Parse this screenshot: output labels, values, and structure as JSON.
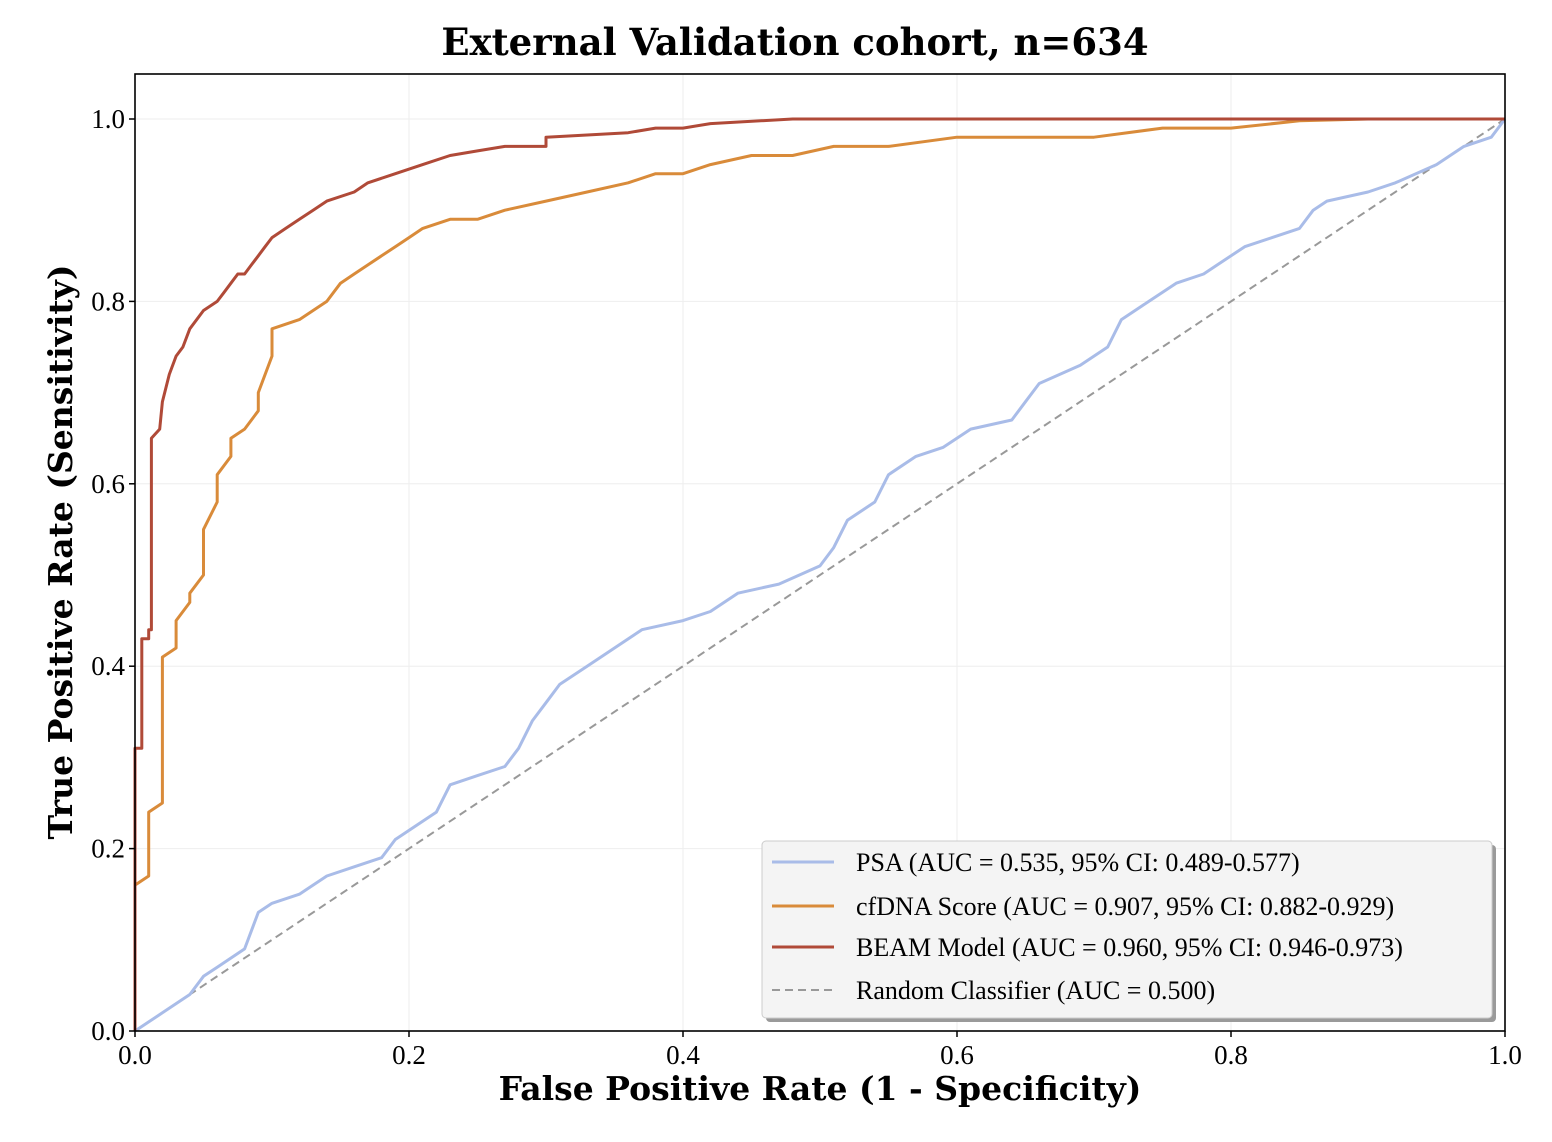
{
  "chart_data": {
    "type": "line",
    "title": "External Validation cohort, n=634",
    "xlabel": "False Positive Rate (1 - Specificity)",
    "ylabel": "True Positive Rate (Sensitivity)",
    "xlim": [
      0.0,
      1.0
    ],
    "ylim": [
      0.0,
      1.05
    ],
    "xticks": [
      "0.0",
      "0.2",
      "0.4",
      "0.6",
      "0.8",
      "1.0"
    ],
    "yticks": [
      "0.0",
      "0.2",
      "0.4",
      "0.6",
      "0.8",
      "1.0"
    ],
    "grid": true,
    "legend_position": "lower-right",
    "series": [
      {
        "name": "PSA (AUC = 0.535, 95% CI: 0.489-0.577)",
        "color": "#a9bce8",
        "style": "solid",
        "points": [
          [
            0,
            0
          ],
          [
            0.01,
            0.01
          ],
          [
            0.02,
            0.02
          ],
          [
            0.03,
            0.03
          ],
          [
            0.04,
            0.04
          ],
          [
            0.05,
            0.06
          ],
          [
            0.06,
            0.07
          ],
          [
            0.08,
            0.09
          ],
          [
            0.09,
            0.13
          ],
          [
            0.1,
            0.14
          ],
          [
            0.12,
            0.15
          ],
          [
            0.14,
            0.17
          ],
          [
            0.16,
            0.18
          ],
          [
            0.18,
            0.19
          ],
          [
            0.19,
            0.21
          ],
          [
            0.21,
            0.23
          ],
          [
            0.22,
            0.24
          ],
          [
            0.23,
            0.27
          ],
          [
            0.25,
            0.28
          ],
          [
            0.27,
            0.29
          ],
          [
            0.28,
            0.31
          ],
          [
            0.29,
            0.34
          ],
          [
            0.3,
            0.36
          ],
          [
            0.31,
            0.38
          ],
          [
            0.33,
            0.4
          ],
          [
            0.35,
            0.42
          ],
          [
            0.37,
            0.44
          ],
          [
            0.4,
            0.45
          ],
          [
            0.42,
            0.46
          ],
          [
            0.44,
            0.48
          ],
          [
            0.47,
            0.49
          ],
          [
            0.5,
            0.51
          ],
          [
            0.51,
            0.53
          ],
          [
            0.52,
            0.56
          ],
          [
            0.54,
            0.58
          ],
          [
            0.55,
            0.61
          ],
          [
            0.57,
            0.63
          ],
          [
            0.59,
            0.64
          ],
          [
            0.61,
            0.66
          ],
          [
            0.64,
            0.67
          ],
          [
            0.65,
            0.69
          ],
          [
            0.66,
            0.71
          ],
          [
            0.69,
            0.73
          ],
          [
            0.71,
            0.75
          ],
          [
            0.72,
            0.78
          ],
          [
            0.74,
            0.8
          ],
          [
            0.76,
            0.82
          ],
          [
            0.78,
            0.83
          ],
          [
            0.79,
            0.84
          ],
          [
            0.81,
            0.86
          ],
          [
            0.83,
            0.87
          ],
          [
            0.85,
            0.88
          ],
          [
            0.86,
            0.9
          ],
          [
            0.87,
            0.91
          ],
          [
            0.9,
            0.92
          ],
          [
            0.92,
            0.93
          ],
          [
            0.95,
            0.95
          ],
          [
            0.97,
            0.97
          ],
          [
            0.99,
            0.98
          ],
          [
            1,
            1
          ]
        ]
      },
      {
        "name": "cfDNA Score (AUC = 0.907, 95% CI: 0.882-0.929)",
        "color": "#d98b3a",
        "style": "solid",
        "points": [
          [
            0,
            0
          ],
          [
            0,
            0.16
          ],
          [
            0.01,
            0.17
          ],
          [
            0.01,
            0.24
          ],
          [
            0.02,
            0.25
          ],
          [
            0.02,
            0.41
          ],
          [
            0.03,
            0.42
          ],
          [
            0.03,
            0.45
          ],
          [
            0.04,
            0.47
          ],
          [
            0.04,
            0.48
          ],
          [
            0.05,
            0.5
          ],
          [
            0.05,
            0.55
          ],
          [
            0.06,
            0.58
          ],
          [
            0.06,
            0.61
          ],
          [
            0.07,
            0.63
          ],
          [
            0.07,
            0.65
          ],
          [
            0.08,
            0.66
          ],
          [
            0.09,
            0.68
          ],
          [
            0.09,
            0.7
          ],
          [
            0.1,
            0.74
          ],
          [
            0.1,
            0.77
          ],
          [
            0.12,
            0.78
          ],
          [
            0.13,
            0.79
          ],
          [
            0.14,
            0.8
          ],
          [
            0.15,
            0.82
          ],
          [
            0.16,
            0.83
          ],
          [
            0.17,
            0.84
          ],
          [
            0.18,
            0.85
          ],
          [
            0.19,
            0.86
          ],
          [
            0.2,
            0.87
          ],
          [
            0.21,
            0.88
          ],
          [
            0.23,
            0.89
          ],
          [
            0.25,
            0.89
          ],
          [
            0.27,
            0.9
          ],
          [
            0.3,
            0.91
          ],
          [
            0.33,
            0.92
          ],
          [
            0.36,
            0.93
          ],
          [
            0.38,
            0.94
          ],
          [
            0.4,
            0.94
          ],
          [
            0.42,
            0.95
          ],
          [
            0.45,
            0.96
          ],
          [
            0.48,
            0.96
          ],
          [
            0.51,
            0.97
          ],
          [
            0.55,
            0.97
          ],
          [
            0.6,
            0.98
          ],
          [
            0.65,
            0.98
          ],
          [
            0.7,
            0.98
          ],
          [
            0.75,
            0.99
          ],
          [
            0.8,
            0.99
          ],
          [
            0.85,
            0.998
          ],
          [
            0.9,
            1
          ],
          [
            1,
            1
          ]
        ]
      },
      {
        "name": "BEAM Model (AUC = 0.960, 95% CI: 0.946-0.973)",
        "color": "#b04a38",
        "style": "solid",
        "points": [
          [
            0,
            0
          ],
          [
            0,
            0.31
          ],
          [
            0.005,
            0.31
          ],
          [
            0.005,
            0.43
          ],
          [
            0.01,
            0.43
          ],
          [
            0.01,
            0.44
          ],
          [
            0.012,
            0.44
          ],
          [
            0.012,
            0.65
          ],
          [
            0.018,
            0.66
          ],
          [
            0.02,
            0.69
          ],
          [
            0.025,
            0.72
          ],
          [
            0.03,
            0.74
          ],
          [
            0.035,
            0.75
          ],
          [
            0.04,
            0.77
          ],
          [
            0.05,
            0.79
          ],
          [
            0.06,
            0.8
          ],
          [
            0.065,
            0.81
          ],
          [
            0.07,
            0.82
          ],
          [
            0.075,
            0.83
          ],
          [
            0.08,
            0.83
          ],
          [
            0.085,
            0.84
          ],
          [
            0.09,
            0.85
          ],
          [
            0.095,
            0.86
          ],
          [
            0.1,
            0.87
          ],
          [
            0.11,
            0.88
          ],
          [
            0.12,
            0.89
          ],
          [
            0.13,
            0.9
          ],
          [
            0.14,
            0.91
          ],
          [
            0.16,
            0.92
          ],
          [
            0.17,
            0.93
          ],
          [
            0.19,
            0.94
          ],
          [
            0.21,
            0.95
          ],
          [
            0.23,
            0.96
          ],
          [
            0.25,
            0.965
          ],
          [
            0.27,
            0.97
          ],
          [
            0.3,
            0.97
          ],
          [
            0.3,
            0.98
          ],
          [
            0.36,
            0.985
          ],
          [
            0.38,
            0.99
          ],
          [
            0.4,
            0.99
          ],
          [
            0.42,
            0.995
          ],
          [
            0.48,
            1
          ],
          [
            0.6,
            1
          ],
          [
            1,
            1
          ]
        ]
      },
      {
        "name": "Random Classifier (AUC = 0.500)",
        "color": "#999999",
        "style": "dashed",
        "points": [
          [
            0,
            0
          ],
          [
            1,
            1
          ]
        ]
      }
    ]
  }
}
